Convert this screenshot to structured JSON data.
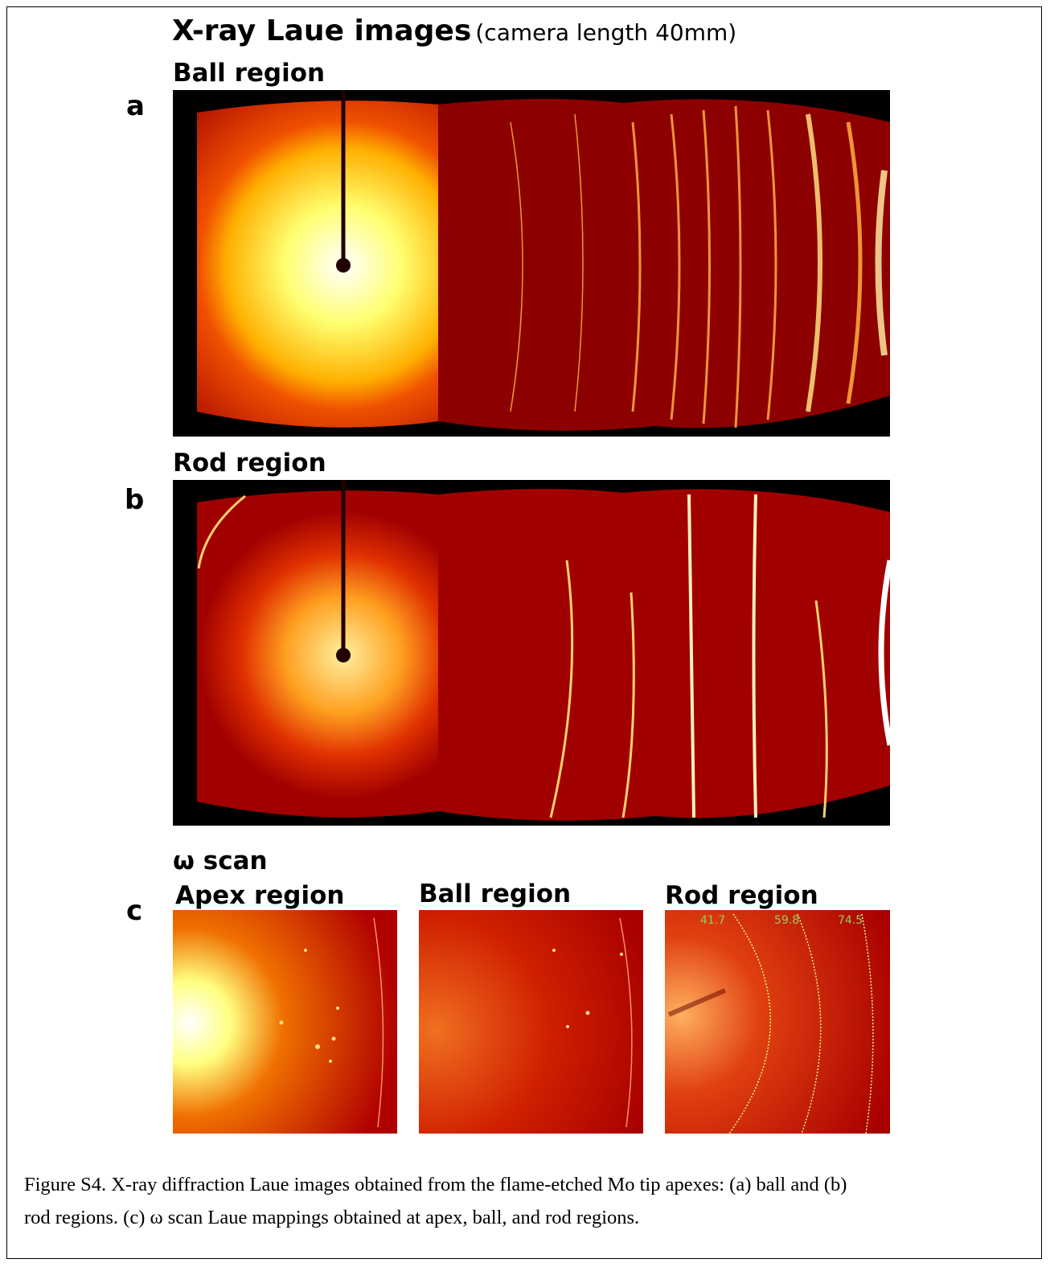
{
  "figure": {
    "title": "X-ray Laue images",
    "subtitle": "(camera length 40mm)",
    "panels": [
      {
        "letter": "a",
        "heading": "Ball region"
      },
      {
        "letter": "b",
        "heading": "Rod region"
      },
      {
        "letter": "c",
        "heading": "ω scan",
        "subpanels": [
          "Apex region",
          "Ball region",
          "Rod region"
        ],
        "ring_labels": [
          "41.7",
          "59.8",
          "74.5"
        ]
      }
    ],
    "caption": [
      "Figure S4. X-ray diffraction Laue images obtained from the flame-etched Mo tip apexes: (a) ball and (b)",
      "rod regions. (c) ω scan Laue mappings obtained at apex, ball, and rod regions."
    ]
  }
}
